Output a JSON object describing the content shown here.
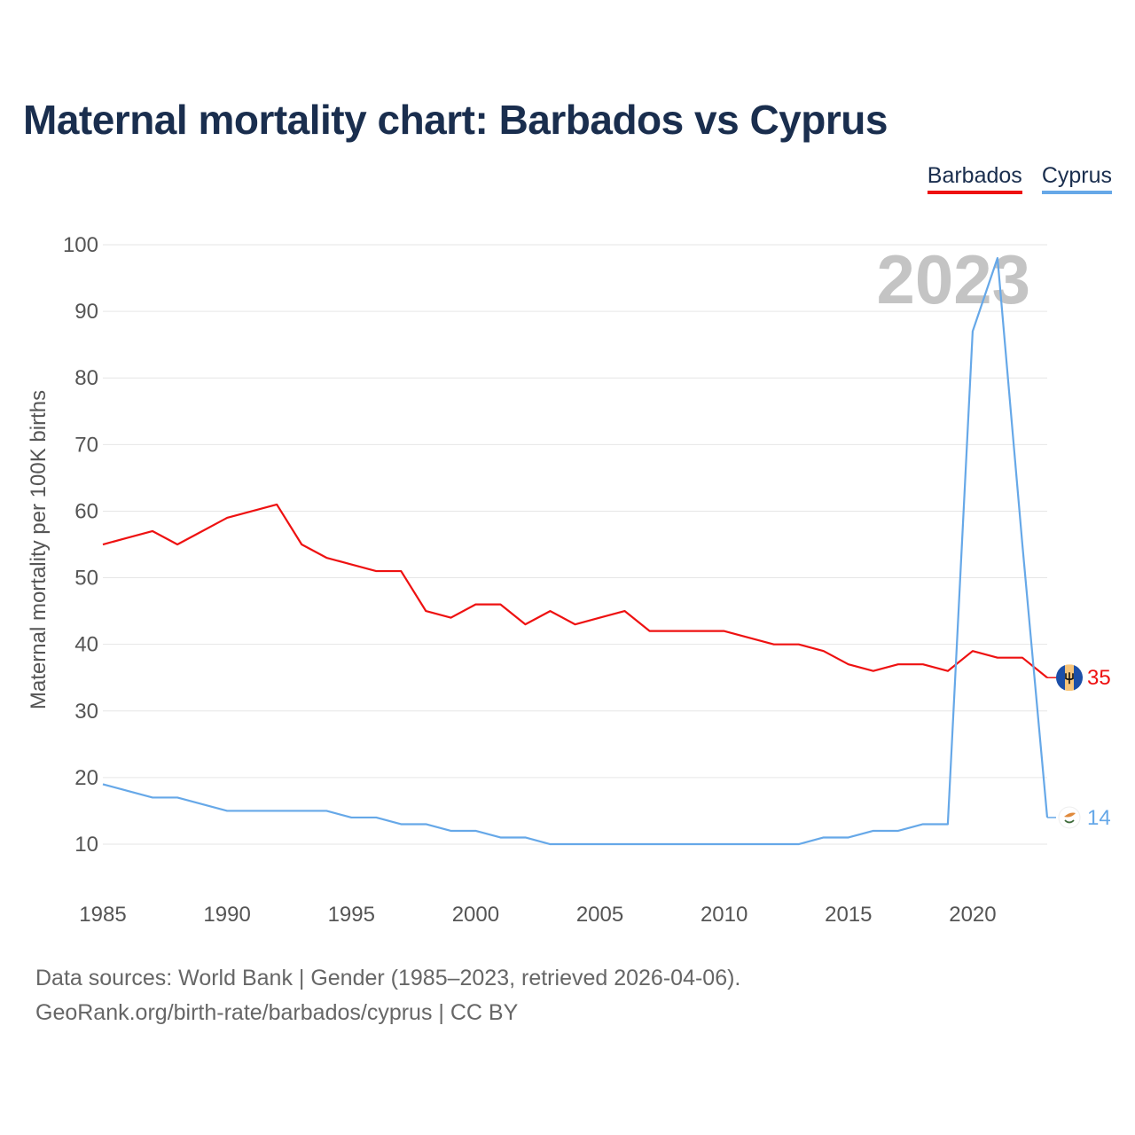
{
  "title": "Maternal mortality chart: Barbados vs Cyprus",
  "legend": [
    {
      "name": "Barbados",
      "color": "#ee1111"
    },
    {
      "name": "Cyprus",
      "color": "#66a8e8"
    }
  ],
  "footer": {
    "line1": "Data sources: World Bank | Gender (1985–2023, retrieved 2026-04-06).",
    "line2": "GeoRank.org/birth-rate/barbados/cyprus | CC BY"
  },
  "chart_data": {
    "type": "line",
    "title": "Maternal mortality chart: Barbados vs Cyprus",
    "xlabel": "",
    "ylabel": "Maternal mortality per 100K births",
    "xlim": [
      1985,
      2023
    ],
    "ylim": [
      10,
      100
    ],
    "x_ticks": [
      1985,
      1990,
      1995,
      2000,
      2005,
      2010,
      2015,
      2020
    ],
    "y_ticks": [
      10,
      20,
      30,
      40,
      50,
      60,
      70,
      80,
      90,
      100
    ],
    "grid": true,
    "year_label": "2023",
    "x": [
      1985,
      1986,
      1987,
      1988,
      1989,
      1990,
      1991,
      1992,
      1993,
      1994,
      1995,
      1996,
      1997,
      1998,
      1999,
      2000,
      2001,
      2002,
      2003,
      2004,
      2005,
      2006,
      2007,
      2008,
      2009,
      2010,
      2011,
      2012,
      2013,
      2014,
      2015,
      2016,
      2017,
      2018,
      2019,
      2020,
      2021,
      2022,
      2023
    ],
    "series": [
      {
        "name": "Barbados",
        "color": "#ee1111",
        "end_label": "35",
        "values": [
          55,
          56,
          57,
          55,
          57,
          59,
          60,
          61,
          55,
          53,
          52,
          51,
          51,
          45,
          44,
          46,
          46,
          43,
          45,
          43,
          44,
          45,
          42,
          42,
          42,
          42,
          41,
          40,
          40,
          39,
          37,
          36,
          37,
          37,
          36,
          39,
          38,
          38,
          35
        ]
      },
      {
        "name": "Cyprus",
        "color": "#66a8e8",
        "end_label": "14",
        "values": [
          19,
          18,
          17,
          17,
          16,
          15,
          15,
          15,
          15,
          15,
          14,
          14,
          13,
          13,
          12,
          12,
          11,
          11,
          10,
          10,
          10,
          10,
          10,
          10,
          10,
          10,
          10,
          10,
          10,
          11,
          11,
          12,
          12,
          13,
          13,
          87,
          98,
          55,
          14
        ]
      }
    ]
  }
}
